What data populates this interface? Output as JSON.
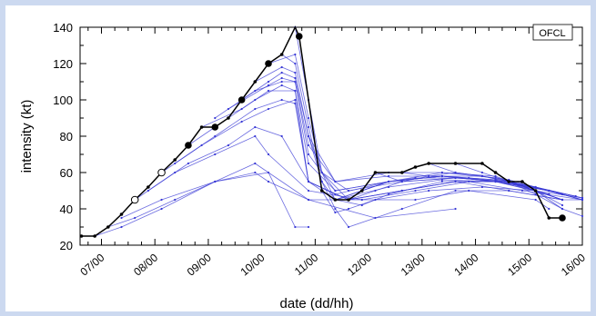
{
  "chart_data": {
    "type": "line",
    "xlabel": "date (dd/hh)",
    "ylabel": "intensity (kt)",
    "legend": {
      "label": "OFCL",
      "placement": "top-right"
    },
    "x_tick_labels": [
      "07/00",
      "08/00",
      "09/00",
      "10/00",
      "11/00",
      "12/00",
      "13/00",
      "14/00",
      "15/00",
      "16/00"
    ],
    "x_range_days": [
      6.6,
      16.0
    ],
    "ylim": [
      20,
      140
    ],
    "y_ticks": [
      20,
      40,
      60,
      80,
      100,
      120,
      140
    ],
    "colors": {
      "best_track": "#000000",
      "forecasts": "#3a3ad6",
      "background": "#ccd9f0"
    },
    "best_track": {
      "name": "",
      "points": [
        {
          "x": 6.625,
          "y": 25,
          "marker": "small"
        },
        {
          "x": 6.875,
          "y": 25,
          "marker": "small"
        },
        {
          "x": 7.125,
          "y": 30,
          "marker": "small"
        },
        {
          "x": 7.375,
          "y": 37,
          "marker": "small"
        },
        {
          "x": 7.625,
          "y": 45,
          "marker": "open"
        },
        {
          "x": 7.875,
          "y": 52,
          "marker": "small"
        },
        {
          "x": 8.125,
          "y": 60,
          "marker": "open"
        },
        {
          "x": 8.375,
          "y": 67,
          "marker": "small"
        },
        {
          "x": 8.625,
          "y": 75,
          "marker": "filled"
        },
        {
          "x": 8.875,
          "y": 85,
          "marker": "small"
        },
        {
          "x": 9.125,
          "y": 85,
          "marker": "filled"
        },
        {
          "x": 9.375,
          "y": 90,
          "marker": "small"
        },
        {
          "x": 9.625,
          "y": 100,
          "marker": "filled"
        },
        {
          "x": 9.875,
          "y": 110,
          "marker": "small"
        },
        {
          "x": 10.125,
          "y": 120,
          "marker": "filled"
        },
        {
          "x": 10.375,
          "y": 125,
          "marker": "small"
        },
        {
          "x": 10.625,
          "y": 140,
          "marker": "none"
        },
        {
          "x": 10.7,
          "y": 135,
          "marker": "filled"
        },
        {
          "x": 11.125,
          "y": 50,
          "marker": "small"
        },
        {
          "x": 11.375,
          "y": 45,
          "marker": "small"
        },
        {
          "x": 11.625,
          "y": 45,
          "marker": "small"
        },
        {
          "x": 11.875,
          "y": 50,
          "marker": "small"
        },
        {
          "x": 12.125,
          "y": 60,
          "marker": "small"
        },
        {
          "x": 12.625,
          "y": 60,
          "marker": "small"
        },
        {
          "x": 12.875,
          "y": 63,
          "marker": "small"
        },
        {
          "x": 13.125,
          "y": 65,
          "marker": "small"
        },
        {
          "x": 13.625,
          "y": 65,
          "marker": "small"
        },
        {
          "x": 14.125,
          "y": 65,
          "marker": "small"
        },
        {
          "x": 14.375,
          "y": 60,
          "marker": "small"
        },
        {
          "x": 14.625,
          "y": 55,
          "marker": "small"
        },
        {
          "x": 14.875,
          "y": 55,
          "marker": "small"
        },
        {
          "x": 15.125,
          "y": 50,
          "marker": "small"
        },
        {
          "x": 15.375,
          "y": 35,
          "marker": "small"
        },
        {
          "x": 15.625,
          "y": 35,
          "marker": "filled"
        }
      ]
    },
    "forecasts": [
      {
        "name": "",
        "x": [
          6.875,
          7.375,
          8.125,
          9.125,
          10.125,
          10.625,
          10.875
        ],
        "y": [
          25,
          30,
          40,
          55,
          60,
          30,
          30
        ]
      },
      {
        "name": "",
        "x": [
          7.125,
          7.625,
          8.375,
          9.125,
          9.875,
          10.875,
          12.125,
          13.625
        ],
        "y": [
          30,
          35,
          45,
          55,
          65,
          45,
          35,
          40
        ]
      },
      {
        "name": "",
        "x": [
          7.375,
          8.125,
          9.125,
          9.875,
          10.125,
          10.875,
          11.875,
          12.875,
          13.875,
          15.125,
          15.375
        ],
        "y": [
          35,
          45,
          55,
          60,
          55,
          45,
          45,
          45,
          50,
          45,
          40
        ]
      },
      {
        "name": "",
        "x": [
          7.625,
          8.375,
          9.125,
          9.875,
          10.125,
          10.875,
          11.875,
          12.875,
          13.875,
          14.875,
          16.0
        ],
        "y": [
          45,
          60,
          70,
          80,
          70,
          50,
          45,
          50,
          55,
          50,
          45
        ]
      },
      {
        "name": "",
        "x": [
          7.875,
          8.625,
          9.375,
          9.875,
          10.375,
          10.875,
          11.625,
          12.625,
          13.625,
          14.625,
          15.625,
          16.0
        ],
        "y": [
          50,
          65,
          75,
          85,
          80,
          55,
          45,
          50,
          55,
          55,
          45,
          45
        ]
      },
      {
        "name": "",
        "x": [
          8.125,
          8.875,
          9.625,
          10.125,
          10.625,
          10.875,
          11.625,
          12.625,
          13.625,
          14.625,
          15.625
        ],
        "y": [
          60,
          75,
          88,
          95,
          100,
          55,
          45,
          50,
          55,
          50,
          45
        ]
      },
      {
        "name": "",
        "x": [
          8.375,
          9.125,
          9.875,
          10.375,
          10.625,
          10.875,
          11.375,
          12.375,
          13.375,
          14.375,
          15.375,
          16.0
        ],
        "y": [
          65,
          80,
          95,
          100,
          98,
          55,
          48,
          55,
          58,
          55,
          50,
          45
        ]
      },
      {
        "name": "",
        "x": [
          8.625,
          9.375,
          9.875,
          10.375,
          10.625,
          10.875,
          11.375,
          12.375,
          13.375,
          14.375,
          15.125
        ],
        "y": [
          75,
          90,
          100,
          108,
          105,
          55,
          45,
          52,
          56,
          55,
          50
        ]
      },
      {
        "name": "",
        "x": [
          8.875,
          9.625,
          10.125,
          10.625,
          10.875,
          11.375,
          12.375,
          13.375,
          14.375,
          15.375,
          16.0
        ],
        "y": [
          85,
          95,
          105,
          105,
          65,
          50,
          55,
          58,
          55,
          50,
          45
        ]
      },
      {
        "name": "",
        "x": [
          9.125,
          9.875,
          10.375,
          10.625,
          10.875,
          11.375,
          12.375,
          13.375,
          14.375,
          15.375
        ],
        "y": [
          90,
          105,
          110,
          110,
          70,
          50,
          55,
          58,
          55,
          48
        ]
      },
      {
        "name": "",
        "x": [
          9.375,
          10.125,
          10.375,
          10.625,
          10.875,
          11.375,
          12.375,
          13.375,
          14.375,
          15.375
        ],
        "y": [
          95,
          108,
          112,
          110,
          75,
          55,
          58,
          58,
          56,
          50
        ]
      },
      {
        "name": "",
        "x": [
          9.625,
          10.125,
          10.375,
          10.625,
          10.875,
          11.375,
          12.375,
          13.375,
          14.375,
          15.125,
          15.625
        ],
        "y": [
          100,
          110,
          115,
          112,
          80,
          55,
          60,
          60,
          58,
          50,
          45
        ]
      },
      {
        "name": "",
        "x": [
          9.875,
          10.375,
          10.625,
          10.875,
          11.125,
          11.625,
          12.625,
          13.625,
          14.625,
          15.625
        ],
        "y": [
          110,
          118,
          115,
          80,
          60,
          50,
          55,
          57,
          55,
          45
        ]
      },
      {
        "name": "",
        "x": [
          10.125,
          10.625,
          10.875,
          11.125,
          11.625,
          12.625,
          13.625,
          14.625,
          15.625
        ],
        "y": [
          120,
          125,
          90,
          60,
          45,
          50,
          55,
          55,
          45
        ]
      },
      {
        "name": "",
        "x": [
          10.375,
          10.625,
          10.875,
          11.125,
          11.375,
          12.375,
          13.375,
          14.375,
          15.375
        ],
        "y": [
          125,
          120,
          85,
          55,
          45,
          55,
          58,
          56,
          48
        ]
      },
      {
        "name": "",
        "x": [
          10.625,
          10.875,
          11.125,
          11.375,
          12.375,
          13.375,
          14.375,
          15.375,
          16.0
        ],
        "y": [
          140,
          100,
          60,
          45,
          55,
          60,
          57,
          50,
          45
        ]
      },
      {
        "name": "",
        "x": [
          10.875,
          11.125,
          11.375,
          11.625,
          12.625,
          13.625,
          14.625,
          15.625
        ],
        "y": [
          80,
          55,
          40,
          30,
          40,
          50,
          50,
          45
        ]
      },
      {
        "name": "",
        "x": [
          11.125,
          11.375,
          11.625,
          12.125,
          13.125,
          14.125,
          15.125,
          16.0
        ],
        "y": [
          50,
          38,
          40,
          45,
          50,
          52,
          50,
          46
        ]
      },
      {
        "name": "",
        "x": [
          11.375,
          11.875,
          12.375,
          13.375,
          14.375,
          15.375
        ],
        "y": [
          45,
          42,
          48,
          55,
          55,
          50
        ]
      },
      {
        "name": "",
        "x": [
          11.625,
          12.125,
          12.625,
          13.625,
          14.625,
          15.625
        ],
        "y": [
          45,
          50,
          55,
          57,
          55,
          48
        ]
      },
      {
        "name": "",
        "x": [
          11.875,
          12.375,
          12.875,
          13.875,
          14.875,
          15.875
        ],
        "y": [
          50,
          55,
          57,
          57,
          53,
          47
        ]
      },
      {
        "name": "",
        "x": [
          12.125,
          12.625,
          13.125,
          14.125,
          15.125,
          16.0
        ],
        "y": [
          60,
          55,
          58,
          58,
          52,
          46
        ]
      },
      {
        "name": "",
        "x": [
          12.625,
          13.125,
          13.625,
          14.625,
          15.625
        ],
        "y": [
          60,
          58,
          60,
          56,
          48
        ]
      },
      {
        "name": "",
        "x": [
          13.125,
          13.625,
          14.125,
          15.125,
          16.0
        ],
        "y": [
          65,
          60,
          58,
          52,
          46
        ]
      },
      {
        "name": "",
        "x": [
          13.625,
          14.125,
          14.625,
          15.625
        ],
        "y": [
          65,
          60,
          55,
          45
        ]
      },
      {
        "name": "",
        "x": [
          14.125,
          14.625,
          15.125,
          15.625
        ],
        "y": [
          65,
          55,
          50,
          42
        ]
      },
      {
        "name": "",
        "x": [
          14.625,
          15.125,
          15.625
        ],
        "y": [
          55,
          48,
          40
        ]
      },
      {
        "name": "",
        "x": [
          15.125,
          15.625,
          16.0
        ],
        "y": [
          50,
          40,
          36
        ]
      }
    ]
  }
}
